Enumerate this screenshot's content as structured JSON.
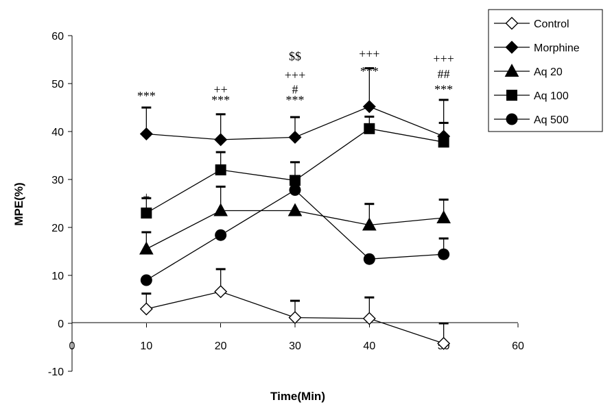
{
  "chart_data": {
    "type": "line",
    "xlabel": "Time(Min)",
    "ylabel": "MPE(%)",
    "xlim": [
      0,
      60
    ],
    "ylim": [
      -10,
      60
    ],
    "x_ticks": [
      0,
      10,
      20,
      30,
      40,
      50,
      60
    ],
    "y_ticks": [
      -10,
      0,
      10,
      20,
      30,
      40,
      50,
      60
    ],
    "legend_position": "top-right",
    "x": [
      10,
      20,
      30,
      40,
      50
    ],
    "series": [
      {
        "name": "Control",
        "marker": "diamond-open",
        "values": [
          3,
          6.6,
          1.2,
          1.0,
          -4.2
        ],
        "errors": [
          3.2,
          4.7,
          3.5,
          4.4,
          4.2
        ]
      },
      {
        "name": "Morphine",
        "marker": "diamond",
        "values": [
          39.5,
          38.3,
          38.8,
          45.2,
          39
        ],
        "errors": [
          5.5,
          5.3,
          4.2,
          8.0,
          7.6
        ]
      },
      {
        "name": "Aq 20",
        "marker": "triangle",
        "values": [
          15.5,
          23.5,
          23.5,
          20.5,
          22
        ],
        "errors": [
          3.5,
          5.0,
          0,
          4.4,
          3.8
        ]
      },
      {
        "name": "Aq 100",
        "marker": "square",
        "values": [
          23,
          32,
          29.8,
          40.6,
          37.8
        ],
        "errors": [
          3.1,
          3.7,
          3.8,
          2.5,
          4.0
        ]
      },
      {
        "name": "Aq 500",
        "marker": "circle",
        "values": [
          9,
          18.4,
          27.8,
          13.4,
          14.4
        ],
        "errors": [
          0,
          0,
          0,
          0,
          3.3
        ]
      }
    ],
    "annotations": [
      {
        "x": 10,
        "y": 47.4,
        "text": "***"
      },
      {
        "x": 10,
        "y": 26.4,
        "text": "+"
      },
      {
        "x": 20,
        "y": 46.6,
        "text": "***"
      },
      {
        "x": 20,
        "y": 48.8,
        "text": "++"
      },
      {
        "x": 30,
        "y": 46.6,
        "text": "***"
      },
      {
        "x": 30,
        "y": 48.8,
        "text": "#"
      },
      {
        "x": 30,
        "y": 51.8,
        "text": "+++"
      },
      {
        "x": 30,
        "y": 55.7,
        "text": "$$"
      },
      {
        "x": 40,
        "y": 52.6,
        "text": "***"
      },
      {
        "x": 40,
        "y": 56.2,
        "text": "+++"
      },
      {
        "x": 50,
        "y": 48.8,
        "text": "***"
      },
      {
        "x": 50,
        "y": 52.0,
        "text": "##"
      },
      {
        "x": 50,
        "y": 55.2,
        "text": "+++"
      }
    ]
  }
}
